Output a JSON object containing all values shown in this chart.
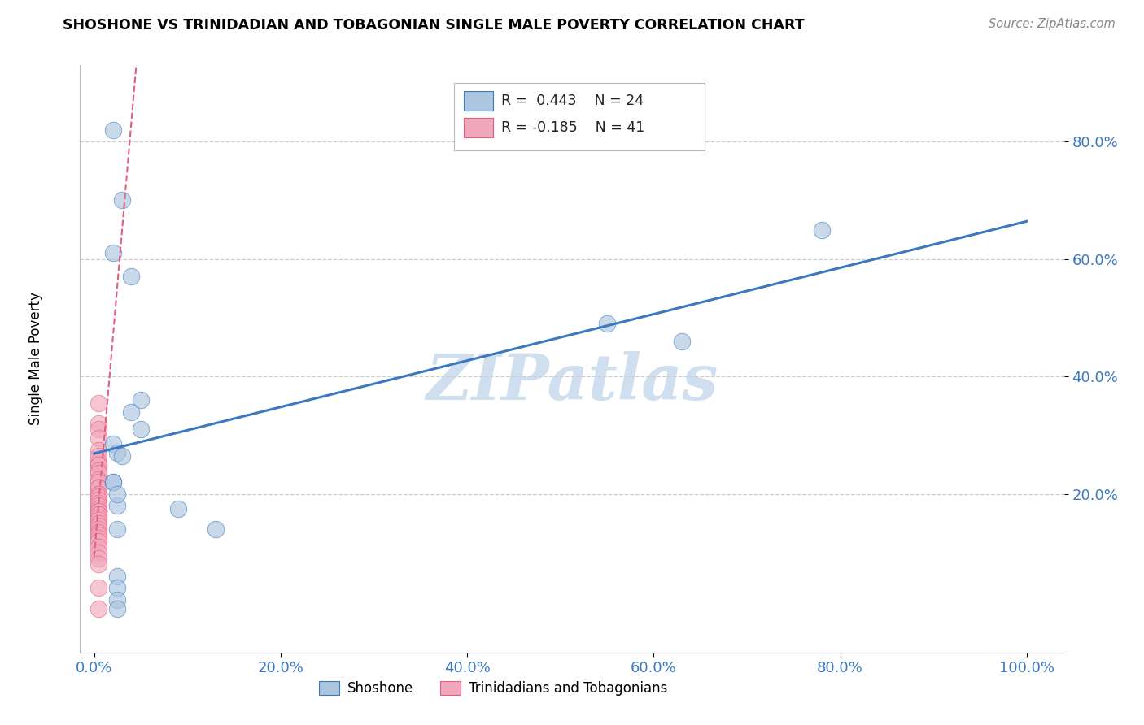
{
  "title": "SHOSHONE VS TRINIDADIAN AND TOBAGONIAN SINGLE MALE POVERTY CORRELATION CHART",
  "source": "Source: ZipAtlas.com",
  "ylabel": "Single Male Poverty",
  "x_tick_labels": [
    "0.0%",
    "20.0%",
    "40.0%",
    "60.0%",
    "80.0%",
    "100.0%"
  ],
  "x_tick_values": [
    0.0,
    0.2,
    0.4,
    0.6,
    0.8,
    1.0
  ],
  "y_tick_labels": [
    "20.0%",
    "40.0%",
    "60.0%",
    "80.0%"
  ],
  "y_tick_values": [
    0.2,
    0.4,
    0.6,
    0.8
  ],
  "xlim": [
    -0.015,
    1.04
  ],
  "ylim": [
    -0.07,
    0.93
  ],
  "shoshone_x": [
    0.02,
    0.03,
    0.02,
    0.04,
    0.05,
    0.04,
    0.02,
    0.025,
    0.03,
    0.05,
    0.02,
    0.09,
    0.02,
    0.55,
    0.63,
    0.78,
    0.025,
    0.025,
    0.025,
    0.13,
    0.025,
    0.025,
    0.025,
    0.025
  ],
  "shoshone_y": [
    0.82,
    0.7,
    0.61,
    0.57,
    0.36,
    0.34,
    0.285,
    0.27,
    0.265,
    0.31,
    0.22,
    0.175,
    0.22,
    0.49,
    0.46,
    0.65,
    0.18,
    0.2,
    0.14,
    0.14,
    0.06,
    0.04,
    0.02,
    0.005
  ],
  "trint_x": [
    0.005,
    0.005,
    0.005,
    0.005,
    0.005,
    0.005,
    0.005,
    0.005,
    0.005,
    0.005,
    0.005,
    0.005,
    0.005,
    0.005,
    0.005,
    0.005,
    0.005,
    0.005,
    0.005,
    0.005,
    0.005,
    0.005,
    0.005,
    0.005,
    0.005,
    0.005,
    0.005,
    0.005,
    0.005,
    0.005,
    0.005,
    0.005,
    0.005,
    0.005,
    0.005,
    0.005,
    0.005,
    0.005,
    0.005,
    0.005,
    0.005
  ],
  "trint_y": [
    0.355,
    0.32,
    0.31,
    0.295,
    0.275,
    0.265,
    0.255,
    0.25,
    0.25,
    0.24,
    0.235,
    0.225,
    0.22,
    0.21,
    0.21,
    0.2,
    0.2,
    0.195,
    0.19,
    0.185,
    0.18,
    0.175,
    0.17,
    0.17,
    0.165,
    0.165,
    0.16,
    0.155,
    0.15,
    0.145,
    0.14,
    0.135,
    0.13,
    0.125,
    0.12,
    0.11,
    0.1,
    0.09,
    0.08,
    0.04,
    0.005
  ],
  "shoshone_R": 0.443,
  "shoshone_N": 24,
  "trint_R": -0.185,
  "trint_N": 41,
  "shoshone_color": "#adc6e0",
  "trint_color": "#f2a8bc",
  "shoshone_line_color": "#3a78c0",
  "trint_line_color": "#e06080",
  "watermark": "ZIPatlas",
  "watermark_color": "#d0dff0",
  "legend_box_color": "#dddddd",
  "shoshone_label": "Shoshone",
  "trint_label": "Trinidadians and Tobagonians"
}
